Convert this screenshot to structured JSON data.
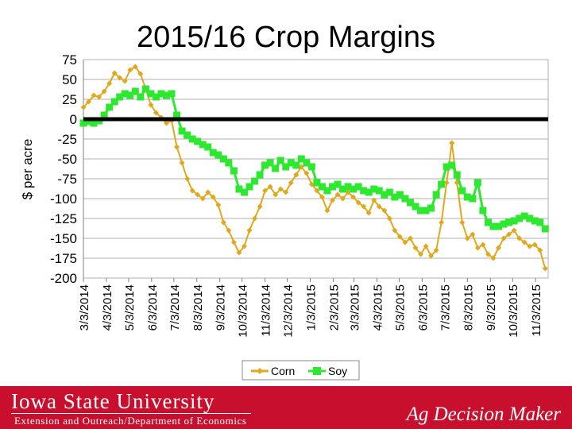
{
  "title": "2015/16 Crop Margins",
  "footer": {
    "university": "Iowa State University",
    "department": "Extension and Outreach/Department of Economics",
    "brand": "Ag Decision Maker"
  },
  "colors": {
    "corn": "#e0a81c",
    "soy": "#2ee830",
    "zero_line": "#000000",
    "footer": "#c8102e"
  },
  "chart_data": {
    "type": "line",
    "title": "2015/16 Crop Margins",
    "xlabel": "",
    "ylabel": "$ per acre",
    "ylim": [
      -200,
      75
    ],
    "y_ticks": [
      75,
      50,
      25,
      0,
      -25,
      -50,
      -75,
      -100,
      -125,
      -150,
      -175,
      -200
    ],
    "x_range": [
      "3/3/2014",
      "11/20/2015"
    ],
    "x_tick_labels": [
      "3/3/2014",
      "4/3/2014",
      "5/3/2014",
      "6/3/2014",
      "7/3/2014",
      "8/3/2014",
      "9/3/2014",
      "10/3/2014",
      "11/3/2014",
      "12/3/2014",
      "1/3/2015",
      "2/3/2015",
      "3/3/2015",
      "4/3/2015",
      "5/3/2015",
      "6/3/2015",
      "7/3/2015",
      "8/3/2015",
      "9/3/2015",
      "10/3/2015",
      "11/3/2015"
    ],
    "grid": true,
    "legend": "bottom",
    "series": [
      {
        "name": "Corn",
        "color": "#e0a81c",
        "points": [
          [
            "3/3/2014",
            15
          ],
          [
            "3/10/2014",
            22
          ],
          [
            "3/17/2014",
            30
          ],
          [
            "3/24/2014",
            28
          ],
          [
            "3/31/2014",
            35
          ],
          [
            "4/7/2014",
            45
          ],
          [
            "4/14/2014",
            58
          ],
          [
            "4/21/2014",
            52
          ],
          [
            "4/28/2014",
            48
          ],
          [
            "5/5/2014",
            62
          ],
          [
            "5/12/2014",
            66
          ],
          [
            "5/19/2014",
            57
          ],
          [
            "5/26/2014",
            38
          ],
          [
            "6/2/2014",
            18
          ],
          [
            "6/9/2014",
            8
          ],
          [
            "6/16/2014",
            2
          ],
          [
            "6/23/2014",
            -5
          ],
          [
            "6/30/2014",
            -2
          ],
          [
            "7/7/2014",
            -35
          ],
          [
            "7/14/2014",
            -55
          ],
          [
            "7/21/2014",
            -75
          ],
          [
            "7/28/2014",
            -90
          ],
          [
            "8/4/2014",
            -95
          ],
          [
            "8/11/2014",
            -100
          ],
          [
            "8/18/2014",
            -92
          ],
          [
            "8/25/2014",
            -98
          ],
          [
            "9/1/2014",
            -108
          ],
          [
            "9/8/2014",
            -130
          ],
          [
            "9/15/2014",
            -140
          ],
          [
            "9/22/2014",
            -155
          ],
          [
            "9/29/2014",
            -168
          ],
          [
            "10/6/2014",
            -160
          ],
          [
            "10/13/2014",
            -140
          ],
          [
            "10/20/2014",
            -125
          ],
          [
            "10/27/2014",
            -110
          ],
          [
            "11/3/2014",
            -90
          ],
          [
            "11/10/2014",
            -85
          ],
          [
            "11/17/2014",
            -95
          ],
          [
            "11/24/2014",
            -88
          ],
          [
            "12/1/2014",
            -92
          ],
          [
            "12/8/2014",
            -80
          ],
          [
            "12/15/2014",
            -70
          ],
          [
            "12/22/2014",
            -60
          ],
          [
            "12/29/2014",
            -68
          ],
          [
            "1/5/2015",
            -82
          ],
          [
            "1/12/2015",
            -90
          ],
          [
            "1/19/2015",
            -98
          ],
          [
            "1/26/2015",
            -115
          ],
          [
            "2/2/2015",
            -102
          ],
          [
            "2/9/2015",
            -95
          ],
          [
            "2/16/2015",
            -100
          ],
          [
            "2/23/2015",
            -92
          ],
          [
            "3/2/2015",
            -98
          ],
          [
            "3/9/2015",
            -105
          ],
          [
            "3/16/2015",
            -110
          ],
          [
            "3/23/2015",
            -118
          ],
          [
            "3/30/2015",
            -102
          ],
          [
            "4/6/2015",
            -110
          ],
          [
            "4/13/2015",
            -115
          ],
          [
            "4/20/2015",
            -125
          ],
          [
            "4/27/2015",
            -140
          ],
          [
            "5/4/2015",
            -148
          ],
          [
            "5/11/2015",
            -155
          ],
          [
            "5/18/2015",
            -150
          ],
          [
            "5/25/2015",
            -162
          ],
          [
            "6/1/2015",
            -170
          ],
          [
            "6/8/2015",
            -160
          ],
          [
            "6/15/2015",
            -172
          ],
          [
            "6/22/2015",
            -165
          ],
          [
            "6/29/2015",
            -130
          ],
          [
            "7/6/2015",
            -80
          ],
          [
            "7/13/2015",
            -30
          ],
          [
            "7/20/2015",
            -80
          ],
          [
            "7/27/2015",
            -130
          ],
          [
            "8/3/2015",
            -150
          ],
          [
            "8/10/2015",
            -145
          ],
          [
            "8/17/2015",
            -162
          ],
          [
            "8/24/2015",
            -158
          ],
          [
            "8/31/2015",
            -170
          ],
          [
            "9/7/2015",
            -175
          ],
          [
            "9/14/2015",
            -162
          ],
          [
            "9/21/2015",
            -150
          ],
          [
            "9/28/2015",
            -145
          ],
          [
            "10/5/2015",
            -140
          ],
          [
            "10/12/2015",
            -150
          ],
          [
            "10/19/2015",
            -155
          ],
          [
            "10/26/2015",
            -160
          ],
          [
            "11/2/2015",
            -158
          ],
          [
            "11/9/2015",
            -165
          ],
          [
            "11/16/2015",
            -188
          ]
        ]
      },
      {
        "name": "Soy",
        "color": "#2ee830",
        "points": [
          [
            "3/3/2014",
            -5
          ],
          [
            "3/10/2014",
            -3
          ],
          [
            "3/17/2014",
            -5
          ],
          [
            "3/24/2014",
            -2
          ],
          [
            "3/31/2014",
            5
          ],
          [
            "4/7/2014",
            15
          ],
          [
            "4/14/2014",
            22
          ],
          [
            "4/21/2014",
            28
          ],
          [
            "4/28/2014",
            32
          ],
          [
            "5/5/2014",
            30
          ],
          [
            "5/12/2014",
            35
          ],
          [
            "5/19/2014",
            28
          ],
          [
            "5/26/2014",
            38
          ],
          [
            "6/2/2014",
            32
          ],
          [
            "6/9/2014",
            28
          ],
          [
            "6/16/2014",
            32
          ],
          [
            "6/23/2014",
            30
          ],
          [
            "6/30/2014",
            32
          ],
          [
            "7/7/2014",
            5
          ],
          [
            "7/14/2014",
            -15
          ],
          [
            "7/21/2014",
            -20
          ],
          [
            "7/28/2014",
            -25
          ],
          [
            "8/4/2014",
            -28
          ],
          [
            "8/11/2014",
            -32
          ],
          [
            "8/18/2014",
            -35
          ],
          [
            "8/25/2014",
            -42
          ],
          [
            "9/1/2014",
            -45
          ],
          [
            "9/8/2014",
            -50
          ],
          [
            "9/15/2014",
            -55
          ],
          [
            "9/22/2014",
            -65
          ],
          [
            "9/29/2014",
            -88
          ],
          [
            "10/6/2014",
            -92
          ],
          [
            "10/13/2014",
            -85
          ],
          [
            "10/20/2014",
            -78
          ],
          [
            "10/27/2014",
            -70
          ],
          [
            "11/3/2014",
            -58
          ],
          [
            "11/10/2014",
            -55
          ],
          [
            "11/17/2014",
            -62
          ],
          [
            "11/24/2014",
            -52
          ],
          [
            "12/1/2014",
            -60
          ],
          [
            "12/8/2014",
            -55
          ],
          [
            "12/15/2014",
            -58
          ],
          [
            "12/22/2014",
            -50
          ],
          [
            "12/29/2014",
            -55
          ],
          [
            "1/5/2015",
            -60
          ],
          [
            "1/12/2015",
            -80
          ],
          [
            "1/19/2015",
            -85
          ],
          [
            "1/26/2015",
            -90
          ],
          [
            "2/2/2015",
            -85
          ],
          [
            "2/9/2015",
            -82
          ],
          [
            "2/16/2015",
            -88
          ],
          [
            "2/23/2015",
            -85
          ],
          [
            "3/2/2015",
            -88
          ],
          [
            "3/9/2015",
            -85
          ],
          [
            "3/16/2015",
            -90
          ],
          [
            "3/23/2015",
            -92
          ],
          [
            "3/30/2015",
            -88
          ],
          [
            "4/6/2015",
            -90
          ],
          [
            "4/13/2015",
            -95
          ],
          [
            "4/20/2015",
            -92
          ],
          [
            "4/27/2015",
            -98
          ],
          [
            "5/4/2015",
            -95
          ],
          [
            "5/11/2015",
            -100
          ],
          [
            "5/18/2015",
            -105
          ],
          [
            "5/25/2015",
            -110
          ],
          [
            "6/1/2015",
            -115
          ],
          [
            "6/8/2015",
            -115
          ],
          [
            "6/15/2015",
            -112
          ],
          [
            "6/22/2015",
            -95
          ],
          [
            "6/29/2015",
            -82
          ],
          [
            "7/6/2015",
            -60
          ],
          [
            "7/13/2015",
            -58
          ],
          [
            "7/20/2015",
            -70
          ],
          [
            "7/27/2015",
            -90
          ],
          [
            "8/3/2015",
            -98
          ],
          [
            "8/10/2015",
            -100
          ],
          [
            "8/17/2015",
            -80
          ],
          [
            "8/24/2015",
            -115
          ],
          [
            "8/31/2015",
            -130
          ],
          [
            "9/7/2015",
            -135
          ],
          [
            "9/14/2015",
            -135
          ],
          [
            "9/21/2015",
            -132
          ],
          [
            "9/28/2015",
            -130
          ],
          [
            "10/5/2015",
            -128
          ],
          [
            "10/12/2015",
            -125
          ],
          [
            "10/19/2015",
            -122
          ],
          [
            "10/26/2015",
            -125
          ],
          [
            "11/2/2015",
            -128
          ],
          [
            "11/9/2015",
            -130
          ],
          [
            "11/16/2015",
            -138
          ]
        ]
      }
    ]
  }
}
